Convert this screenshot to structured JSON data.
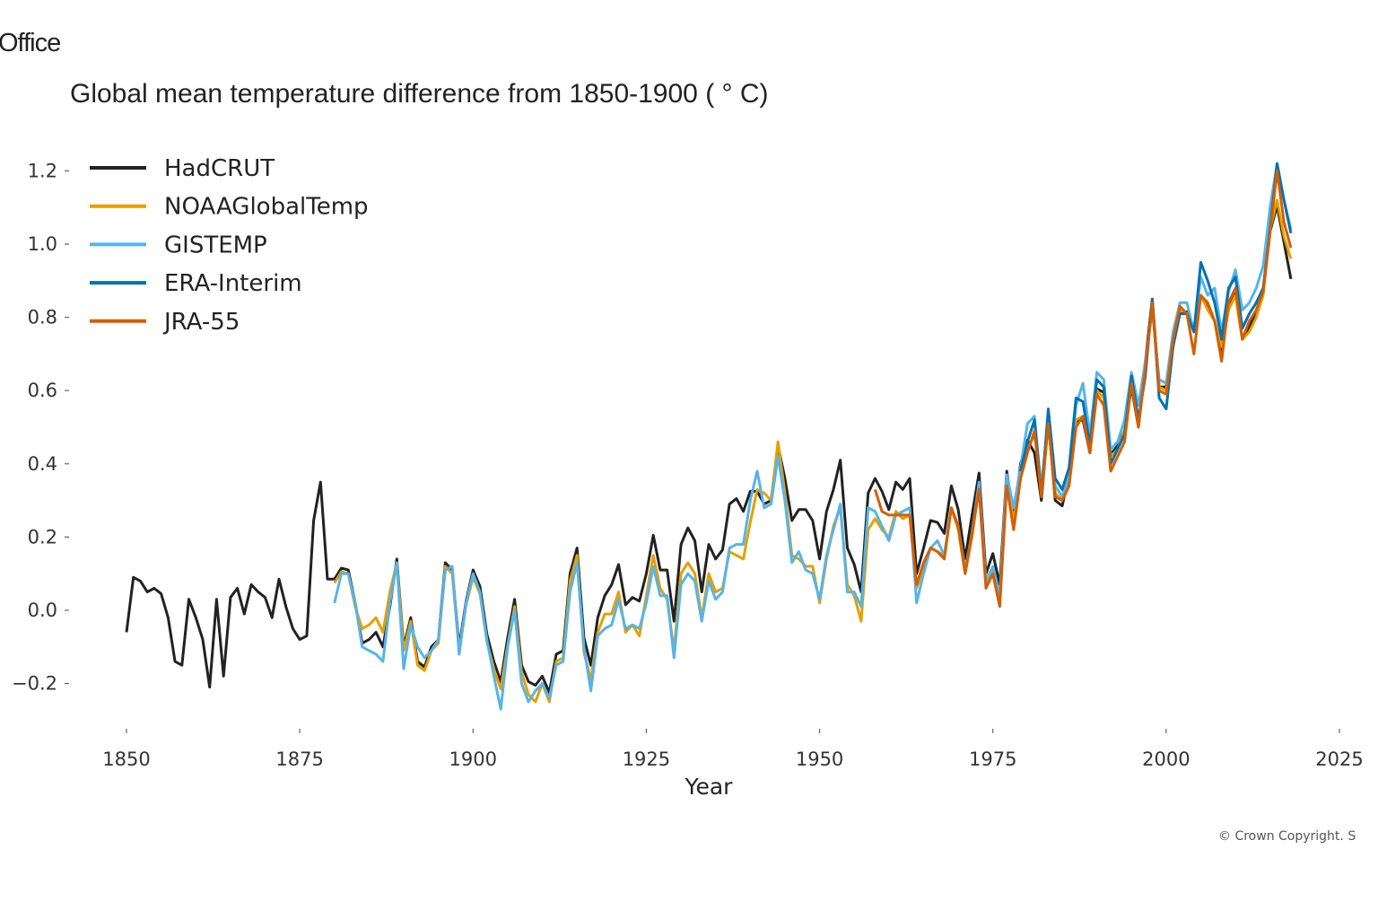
{
  "header": {
    "org_fragment": "Office"
  },
  "footer": {
    "copyright": "© Crown Copyright. S"
  },
  "chart_data": {
    "type": "line",
    "title": "Global mean temperature difference from 1850-1900 ( ° C)",
    "xlabel": "Year",
    "ylabel": "",
    "xlim": [
      1850,
      2025
    ],
    "ylim": [
      -0.3,
      1.25
    ],
    "xticks": [
      1850,
      1875,
      1900,
      1925,
      1950,
      1975,
      2000,
      2025
    ],
    "yticks": [
      -0.2,
      0.0,
      0.2,
      0.4,
      0.6,
      0.8,
      1.0,
      1.2
    ],
    "ytick_labels": [
      "−0.2",
      "0.0",
      "0.2",
      "0.4",
      "0.6",
      "0.8",
      "1.0",
      "1.2"
    ],
    "grid": false,
    "legend_position": "top-left",
    "series": [
      {
        "name": "HadCRUT",
        "color": "#222222",
        "start_year": 1850,
        "values": [
          -0.06,
          0.09,
          0.08,
          0.05,
          0.06,
          0.045,
          -0.02,
          -0.14,
          -0.15,
          0.03,
          -0.02,
          -0.08,
          -0.21,
          0.03,
          -0.18,
          0.035,
          0.06,
          -0.01,
          0.07,
          0.05,
          0.035,
          -0.02,
          0.085,
          0.01,
          -0.05,
          -0.08,
          -0.07,
          0.245,
          0.35,
          0.085,
          0.085,
          0.115,
          0.11,
          0.02,
          -0.09,
          -0.08,
          -0.06,
          -0.1,
          0.01,
          0.14,
          -0.1,
          -0.02,
          -0.14,
          -0.155,
          -0.1,
          -0.08,
          0.13,
          0.11,
          -0.1,
          0.025,
          0.11,
          0.065,
          -0.065,
          -0.14,
          -0.195,
          -0.075,
          0.03,
          -0.15,
          -0.195,
          -0.205,
          -0.18,
          -0.225,
          -0.12,
          -0.11,
          0.1,
          0.17,
          -0.075,
          -0.15,
          -0.02,
          0.04,
          0.07,
          0.125,
          0.015,
          0.035,
          0.025,
          0.1,
          0.205,
          0.11,
          0.11,
          -0.03,
          0.18,
          0.225,
          0.19,
          0.05,
          0.18,
          0.14,
          0.165,
          0.29,
          0.305,
          0.27,
          0.325,
          0.325,
          0.29,
          0.3,
          0.45,
          0.36,
          0.245,
          0.275,
          0.275,
          0.245,
          0.14,
          0.27,
          0.33,
          0.41,
          0.17,
          0.125,
          0.05,
          0.32,
          0.36,
          0.325,
          0.275,
          0.35,
          0.33,
          0.36,
          0.1,
          0.17,
          0.245,
          0.24,
          0.21,
          0.34,
          0.275,
          0.14,
          0.26,
          0.375,
          0.1,
          0.155,
          0.07,
          0.38,
          0.25,
          0.4,
          0.465,
          0.43,
          0.3,
          0.52,
          0.3,
          0.285,
          0.37,
          0.515,
          0.52,
          0.43,
          0.605,
          0.595,
          0.425,
          0.45,
          0.49,
          0.61,
          0.5,
          0.68,
          0.85,
          0.61,
          0.61,
          0.74,
          0.81,
          0.815,
          0.77,
          0.86,
          0.825,
          0.79,
          0.71,
          0.825,
          0.865,
          0.74,
          0.775,
          0.815,
          0.875,
          1.035,
          1.105,
          1.005,
          0.905
        ]
      },
      {
        "name": "NOAAGlobalTemp",
        "color": "#E69F00",
        "start_year": 1880,
        "values": [
          0.075,
          0.105,
          0.1,
          0.01,
          -0.05,
          -0.04,
          -0.02,
          -0.06,
          0.05,
          0.13,
          -0.11,
          -0.03,
          -0.15,
          -0.165,
          -0.11,
          -0.09,
          0.12,
          0.1,
          -0.11,
          0.015,
          0.09,
          0.045,
          -0.085,
          -0.16,
          -0.215,
          -0.095,
          0.01,
          -0.17,
          -0.23,
          -0.25,
          -0.2,
          -0.25,
          -0.14,
          -0.13,
          0.08,
          0.15,
          -0.115,
          -0.19,
          -0.06,
          -0.01,
          -0.01,
          0.05,
          -0.06,
          -0.04,
          -0.07,
          0.04,
          0.15,
          0.06,
          0.03,
          -0.11,
          0.1,
          0.13,
          0.1,
          -0.02,
          0.1,
          0.05,
          0.06,
          0.16,
          0.15,
          0.14,
          0.24,
          0.33,
          0.32,
          0.3,
          0.46,
          0.32,
          0.15,
          0.14,
          0.12,
          0.12,
          0.02,
          0.14,
          0.23,
          0.28,
          0.07,
          0.04,
          -0.03,
          0.22,
          0.25,
          0.22,
          0.2,
          0.27,
          0.25,
          0.26,
          0.06,
          0.11,
          0.17,
          0.16,
          0.15,
          0.28,
          0.22,
          0.1,
          0.2,
          0.34,
          0.07,
          0.11,
          0.03,
          0.37,
          0.24,
          0.38,
          0.44,
          0.48,
          0.34,
          0.52,
          0.32,
          0.3,
          0.37,
          0.52,
          0.53,
          0.44,
          0.6,
          0.58,
          0.42,
          0.44,
          0.49,
          0.62,
          0.51,
          0.66,
          0.84,
          0.61,
          0.6,
          0.74,
          0.82,
          0.81,
          0.77,
          0.86,
          0.82,
          0.79,
          0.72,
          0.82,
          0.86,
          0.74,
          0.76,
          0.8,
          0.86,
          1.04,
          1.12,
          1.02,
          0.96
        ]
      },
      {
        "name": "GISTEMP",
        "color": "#56B4E9",
        "start_year": 1880,
        "values": [
          0.02,
          0.1,
          0.1,
          0.02,
          -0.1,
          -0.11,
          -0.12,
          -0.14,
          0.02,
          0.13,
          -0.16,
          -0.04,
          -0.1,
          -0.13,
          -0.11,
          -0.08,
          0.11,
          0.12,
          -0.12,
          0.02,
          0.1,
          0.05,
          -0.08,
          -0.18,
          -0.27,
          -0.1,
          0.0,
          -0.2,
          -0.25,
          -0.22,
          -0.2,
          -0.24,
          -0.15,
          -0.14,
          0.05,
          0.13,
          -0.1,
          -0.22,
          -0.07,
          -0.05,
          -0.04,
          0.03,
          -0.05,
          -0.04,
          -0.05,
          0.02,
          0.12,
          0.04,
          0.04,
          -0.13,
          0.07,
          0.1,
          0.08,
          -0.03,
          0.08,
          0.03,
          0.05,
          0.17,
          0.18,
          0.18,
          0.3,
          0.38,
          0.28,
          0.29,
          0.42,
          0.3,
          0.13,
          0.16,
          0.11,
          0.1,
          0.03,
          0.15,
          0.22,
          0.29,
          0.05,
          0.05,
          0.01,
          0.28,
          0.27,
          0.23,
          0.19,
          0.26,
          0.27,
          0.28,
          0.02,
          0.1,
          0.17,
          0.19,
          0.15,
          0.28,
          0.23,
          0.11,
          0.21,
          0.35,
          0.08,
          0.12,
          0.04,
          0.37,
          0.28,
          0.39,
          0.51,
          0.53,
          0.33,
          0.53,
          0.34,
          0.31,
          0.37,
          0.56,
          0.62,
          0.48,
          0.65,
          0.63,
          0.44,
          0.46,
          0.52,
          0.65,
          0.56,
          0.68,
          0.82,
          0.63,
          0.62,
          0.76,
          0.84,
          0.84,
          0.76,
          0.91,
          0.86,
          0.88,
          0.76,
          0.87,
          0.93,
          0.82,
          0.84,
          0.88,
          0.94,
          1.1,
          1.22,
          1.12,
          1.04
        ]
      },
      {
        "name": "ERA-Interim",
        "color": "#0072B2",
        "start_year": 1979,
        "values": [
          0.38,
          0.46,
          0.52,
          0.31,
          0.55,
          0.36,
          0.33,
          0.39,
          0.58,
          0.57,
          0.45,
          0.63,
          0.61,
          0.4,
          0.44,
          0.48,
          0.64,
          0.52,
          0.64,
          0.85,
          0.58,
          0.55,
          0.72,
          0.81,
          0.81,
          0.76,
          0.95,
          0.9,
          0.84,
          0.74,
          0.88,
          0.91,
          0.77,
          0.81,
          0.84,
          0.88,
          1.04,
          1.22,
          1.12,
          1.03
        ]
      },
      {
        "name": "JRA-55",
        "color": "#D55E00",
        "start_year": 1958,
        "values": [
          0.33,
          0.27,
          0.26,
          0.26,
          0.26,
          0.26,
          0.07,
          0.13,
          0.17,
          0.16,
          0.14,
          0.28,
          0.23,
          0.1,
          0.21,
          0.33,
          0.06,
          0.1,
          0.01,
          0.34,
          0.22,
          0.36,
          0.43,
          0.49,
          0.31,
          0.51,
          0.31,
          0.3,
          0.34,
          0.5,
          0.53,
          0.43,
          0.59,
          0.56,
          0.38,
          0.42,
          0.46,
          0.62,
          0.5,
          0.66,
          0.84,
          0.6,
          0.59,
          0.74,
          0.83,
          0.81,
          0.7,
          0.86,
          0.84,
          0.79,
          0.68,
          0.84,
          0.88,
          0.74,
          0.79,
          0.82,
          0.87,
          1.03,
          1.2,
          1.06,
          0.99
        ]
      }
    ]
  }
}
